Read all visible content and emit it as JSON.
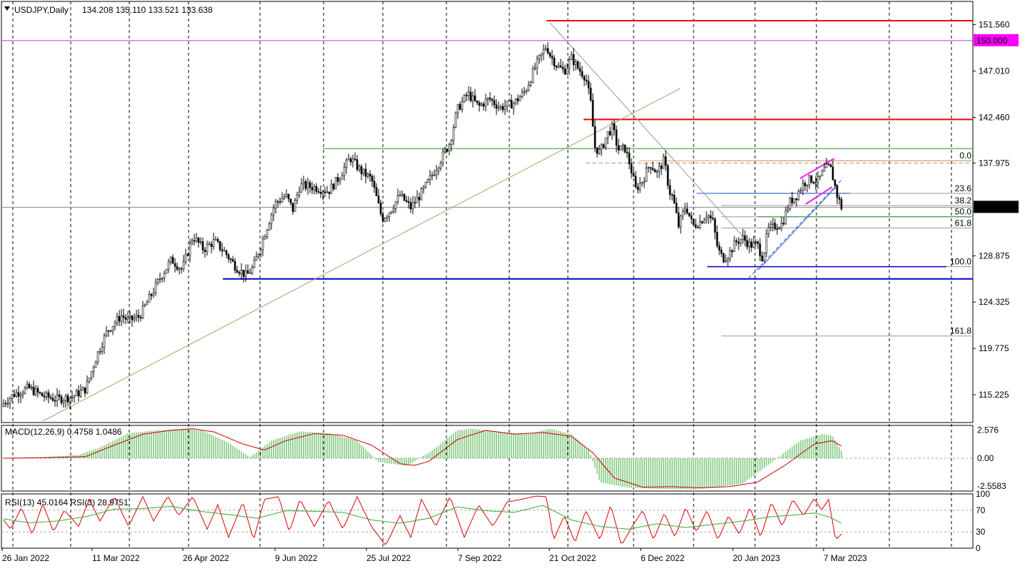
{
  "header": {
    "symbol": "USDJPY,Daily",
    "ohlc": "134.208 135.110 133.521 133.638"
  },
  "chart_data": {
    "type": "candlestick",
    "price_axis_ticks": [
      "151.560",
      "147.010",
      "142.460",
      "137.975",
      "133.638",
      "128.875",
      "124.325",
      "119.775",
      "115.225"
    ],
    "price_ylim": [
      112.5,
      153.0
    ],
    "current_price_label": "133.638",
    "level_label": "150.000",
    "date_ticks": [
      "26 Jan 2022",
      "11 Mar 2022",
      "26 Apr 2022",
      "9 Jun 2022",
      "25 Jul 2022",
      "7 Sep 2022",
      "21 Oct 2022",
      "6 Dec 2022",
      "20 Jan 2023",
      "7 Mar 2023"
    ],
    "horizontal_levels": [
      {
        "price": 151.95,
        "color": "#ff0000"
      },
      {
        "price": 150.0,
        "color": "#cc33cc"
      },
      {
        "price": 142.25,
        "color": "#ff0000"
      },
      {
        "price": 139.4,
        "color": "#2e8b2e"
      },
      {
        "price": 126.6,
        "color": "#0000cc"
      }
    ],
    "fibonacci": {
      "labels": [
        "0.0",
        "23.6",
        "38.2",
        "50.0",
        "61.8",
        "100.0",
        "161.8"
      ],
      "prices": [
        138.2,
        135.0,
        133.8,
        132.7,
        131.6,
        127.8,
        121.0
      ]
    },
    "close_series_anchors": [
      [
        0,
        114.1
      ],
      [
        20,
        115.3
      ],
      [
        40,
        115.9
      ],
      [
        60,
        115.1
      ],
      [
        80,
        114.8
      ],
      [
        100,
        115.0
      ],
      [
        120,
        115.8
      ],
      [
        135,
        119.0
      ],
      [
        150,
        121.5
      ],
      [
        170,
        123.0
      ],
      [
        180,
        122.5
      ],
      [
        195,
        122.9
      ],
      [
        210,
        124.8
      ],
      [
        225,
        126.8
      ],
      [
        240,
        128.5
      ],
      [
        255,
        127.5
      ],
      [
        270,
        130.8
      ],
      [
        285,
        129.5
      ],
      [
        300,
        130.3
      ],
      [
        315,
        129.2
      ],
      [
        330,
        127.8
      ],
      [
        345,
        126.9
      ],
      [
        355,
        127.8
      ],
      [
        370,
        130.9
      ],
      [
        385,
        134.0
      ],
      [
        400,
        134.8
      ],
      [
        410,
        133.4
      ],
      [
        420,
        135.8
      ],
      [
        440,
        135.6
      ],
      [
        460,
        135.2
      ],
      [
        475,
        136.6
      ],
      [
        490,
        138.5
      ],
      [
        505,
        137.2
      ],
      [
        520,
        136.4
      ],
      [
        535,
        132.5
      ],
      [
        545,
        133.2
      ],
      [
        560,
        134.8
      ],
      [
        575,
        133.6
      ],
      [
        590,
        135.0
      ],
      [
        605,
        136.8
      ],
      [
        620,
        138.7
      ],
      [
        630,
        140.0
      ],
      [
        640,
        143.2
      ],
      [
        655,
        144.8
      ],
      [
        670,
        143.5
      ],
      [
        685,
        144.3
      ],
      [
        700,
        143.4
      ],
      [
        720,
        143.9
      ],
      [
        735,
        145.0
      ],
      [
        750,
        147.5
      ],
      [
        765,
        149.5
      ],
      [
        770,
        148.6
      ],
      [
        780,
        147.5
      ],
      [
        790,
        147.0
      ],
      [
        800,
        148.3
      ],
      [
        810,
        147.2
      ],
      [
        820,
        146.4
      ],
      [
        828,
        143.5
      ],
      [
        832,
        139.6
      ],
      [
        840,
        139.0
      ],
      [
        850,
        140.8
      ],
      [
        858,
        141.5
      ],
      [
        865,
        139.3
      ],
      [
        875,
        139.4
      ],
      [
        882,
        137.8
      ],
      [
        890,
        135.4
      ],
      [
        900,
        136.3
      ],
      [
        910,
        137.9
      ],
      [
        920,
        137.0
      ],
      [
        930,
        138.3
      ],
      [
        937,
        135.2
      ],
      [
        942,
        134.6
      ],
      [
        950,
        131.8
      ],
      [
        960,
        133.8
      ],
      [
        970,
        131.8
      ],
      [
        980,
        132.2
      ],
      [
        990,
        133.0
      ],
      [
        998,
        132.2
      ],
      [
        1005,
        129.5
      ],
      [
        1012,
        128.6
      ],
      [
        1020,
        129.0
      ],
      [
        1030,
        130.2
      ],
      [
        1040,
        130.6
      ],
      [
        1050,
        129.9
      ],
      [
        1060,
        130.0
      ],
      [
        1068,
        128.6
      ],
      [
        1075,
        131.4
      ],
      [
        1085,
        131.8
      ],
      [
        1095,
        132.0
      ],
      [
        1105,
        134.1
      ],
      [
        1115,
        134.8
      ],
      [
        1125,
        136.0
      ],
      [
        1135,
        136.4
      ],
      [
        1145,
        136.2
      ],
      [
        1155,
        137.4
      ],
      [
        1162,
        137.6
      ],
      [
        1167,
        136.3
      ],
      [
        1172,
        134.8
      ],
      [
        1178,
        133.64
      ]
    ],
    "macd": {
      "label": "MACD(12,26,9) 0.4758 1.0486",
      "ticks": [
        "2.576",
        "0.00",
        "-2.5583"
      ],
      "ylim": [
        -3.0,
        3.0
      ],
      "histogram_anchors": [
        [
          5,
          0.02
        ],
        [
          60,
          0.1
        ],
        [
          110,
          0.3
        ],
        [
          140,
          1.0
        ],
        [
          180,
          2.3
        ],
        [
          220,
          2.55
        ],
        [
          260,
          2.7
        ],
        [
          285,
          2.5
        ],
        [
          320,
          1.4
        ],
        [
          350,
          0.1
        ],
        [
          380,
          1.6
        ],
        [
          420,
          2.45
        ],
        [
          460,
          2.3
        ],
        [
          500,
          1.6
        ],
        [
          530,
          -0.35
        ],
        [
          570,
          -0.7
        ],
        [
          605,
          0.7
        ],
        [
          640,
          2.55
        ],
        [
          660,
          2.7
        ],
        [
          700,
          2.4
        ],
        [
          740,
          2.2
        ],
        [
          770,
          2.7
        ],
        [
          800,
          2.2
        ],
        [
          825,
          0.7
        ],
        [
          840,
          -2.2
        ],
        [
          880,
          -2.7
        ],
        [
          920,
          -2.8
        ],
        [
          960,
          -2.85
        ],
        [
          1000,
          -2.7
        ],
        [
          1040,
          -2.3
        ],
        [
          1080,
          -0.4
        ],
        [
          1120,
          1.6
        ],
        [
          1150,
          2.2
        ],
        [
          1165,
          2.1
        ],
        [
          1180,
          0.48
        ]
      ],
      "signal_anchors": [
        [
          5,
          0.0
        ],
        [
          60,
          0.05
        ],
        [
          120,
          0.15
        ],
        [
          160,
          1.2
        ],
        [
          200,
          2.2
        ],
        [
          240,
          2.55
        ],
        [
          270,
          2.7
        ],
        [
          300,
          2.4
        ],
        [
          340,
          1.3
        ],
        [
          370,
          0.75
        ],
        [
          400,
          1.6
        ],
        [
          440,
          2.25
        ],
        [
          480,
          2.1
        ],
        [
          520,
          1.2
        ],
        [
          560,
          -0.5
        ],
        [
          580,
          -0.65
        ],
        [
          600,
          -0.3
        ],
        [
          640,
          1.7
        ],
        [
          680,
          2.55
        ],
        [
          720,
          2.2
        ],
        [
          760,
          2.35
        ],
        [
          800,
          2.0
        ],
        [
          830,
          0.5
        ],
        [
          860,
          -1.8
        ],
        [
          900,
          -2.65
        ],
        [
          940,
          -2.6
        ],
        [
          980,
          -2.7
        ],
        [
          1020,
          -2.6
        ],
        [
          1060,
          -2.2
        ],
        [
          1100,
          -0.6
        ],
        [
          1140,
          1.3
        ],
        [
          1165,
          1.6
        ],
        [
          1180,
          1.05
        ]
      ]
    },
    "rsi": {
      "label": "RSI(13) 45.0164  RSI(3) 28.9751",
      "ticks": [
        "100",
        "70",
        "30",
        "0"
      ],
      "ylim": [
        0,
        100
      ],
      "rsi13_anchors": [
        [
          0,
          55
        ],
        [
          40,
          47
        ],
        [
          80,
          50
        ],
        [
          120,
          58
        ],
        [
          160,
          72
        ],
        [
          200,
          73
        ],
        [
          240,
          77
        ],
        [
          280,
          68
        ],
        [
          320,
          62
        ],
        [
          360,
          55
        ],
        [
          400,
          69
        ],
        [
          440,
          68
        ],
        [
          480,
          66
        ],
        [
          520,
          52
        ],
        [
          560,
          46
        ],
        [
          600,
          55
        ],
        [
          640,
          76
        ],
        [
          680,
          69
        ],
        [
          720,
          66
        ],
        [
          760,
          79
        ],
        [
          800,
          52
        ],
        [
          840,
          40
        ],
        [
          880,
          35
        ],
        [
          920,
          45
        ],
        [
          960,
          38
        ],
        [
          1000,
          44
        ],
        [
          1040,
          50
        ],
        [
          1080,
          58
        ],
        [
          1120,
          62
        ],
        [
          1140,
          65
        ],
        [
          1160,
          58
        ],
        [
          1180,
          45
        ]
      ],
      "rsi3_anchors": [
        [
          0,
          60
        ],
        [
          15,
          35
        ],
        [
          30,
          75
        ],
        [
          45,
          25
        ],
        [
          60,
          82
        ],
        [
          75,
          30
        ],
        [
          90,
          70
        ],
        [
          110,
          40
        ],
        [
          125,
          90
        ],
        [
          140,
          50
        ],
        [
          160,
          95
        ],
        [
          180,
          40
        ],
        [
          200,
          95
        ],
        [
          215,
          50
        ],
        [
          235,
          96
        ],
        [
          250,
          60
        ],
        [
          270,
          95
        ],
        [
          290,
          35
        ],
        [
          305,
          80
        ],
        [
          320,
          20
        ],
        [
          340,
          85
        ],
        [
          355,
          15
        ],
        [
          370,
          90
        ],
        [
          390,
          95
        ],
        [
          405,
          30
        ],
        [
          420,
          90
        ],
        [
          440,
          40
        ],
        [
          460,
          88
        ],
        [
          480,
          35
        ],
        [
          500,
          95
        ],
        [
          520,
          40
        ],
        [
          540,
          5
        ],
        [
          560,
          60
        ],
        [
          575,
          20
        ],
        [
          590,
          90
        ],
        [
          610,
          40
        ],
        [
          630,
          95
        ],
        [
          650,
          20
        ],
        [
          670,
          80
        ],
        [
          690,
          40
        ],
        [
          710,
          85
        ],
        [
          730,
          90
        ],
        [
          750,
          96
        ],
        [
          765,
          95
        ],
        [
          775,
          15
        ],
        [
          790,
          60
        ],
        [
          805,
          10
        ],
        [
          820,
          70
        ],
        [
          840,
          15
        ],
        [
          855,
          80
        ],
        [
          870,
          5
        ],
        [
          885,
          40
        ],
        [
          900,
          70
        ],
        [
          915,
          15
        ],
        [
          930,
          65
        ],
        [
          945,
          20
        ],
        [
          960,
          75
        ],
        [
          975,
          30
        ],
        [
          990,
          70
        ],
        [
          1005,
          15
        ],
        [
          1020,
          60
        ],
        [
          1035,
          25
        ],
        [
          1050,
          75
        ],
        [
          1065,
          20
        ],
        [
          1080,
          85
        ],
        [
          1095,
          40
        ],
        [
          1110,
          90
        ],
        [
          1125,
          60
        ],
        [
          1140,
          92
        ],
        [
          1150,
          70
        ],
        [
          1160,
          90
        ],
        [
          1170,
          15
        ],
        [
          1180,
          29
        ]
      ]
    }
  }
}
